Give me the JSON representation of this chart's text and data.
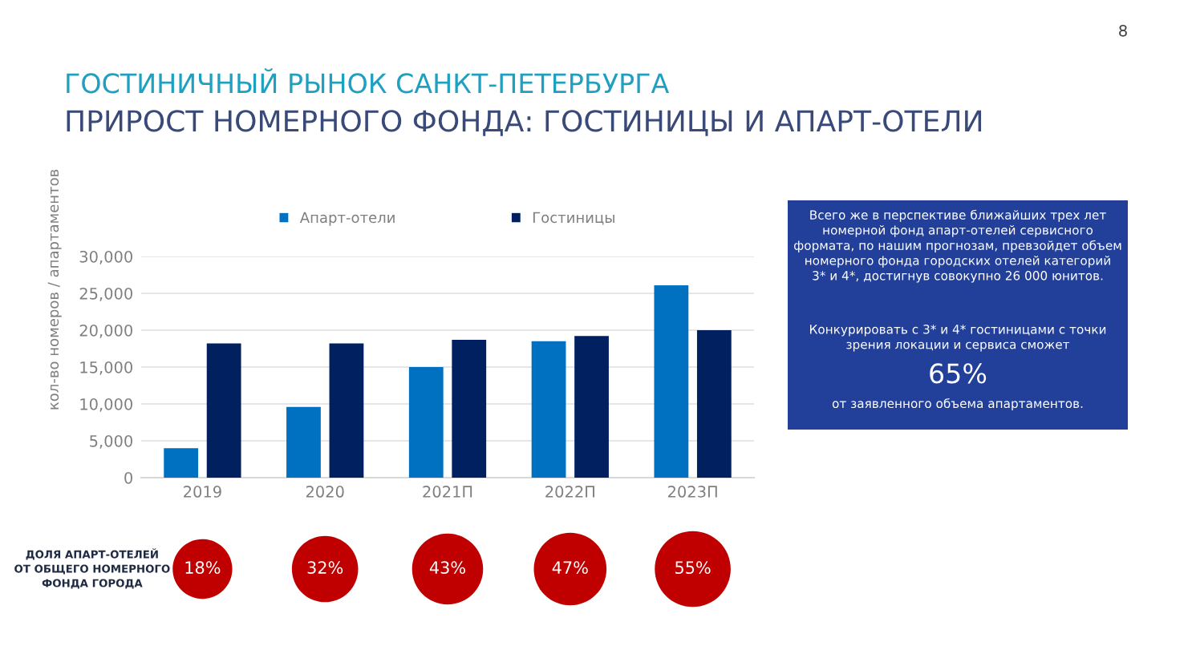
{
  "chart_data": [
    {
      "type": "bar",
      "title": "ГОСТИНИЧНЫЙ РЫНОК САНКТ-ПЕТЕРБУРГА",
      "subtitle": "ПРИРОСТ НОМЕРНОГО ФОНДА: ГОСТИНИЦЫ И АПАРТ-ОТЕЛИ",
      "ylabel": "кол-во номеров / апартаментов",
      "categories": [
        "2019",
        "2020",
        "2021П",
        "2022П",
        "2023П"
      ],
      "series": [
        {
          "name": "Апарт-отели",
          "color": "#0070c0",
          "values": [
            4000,
            9600,
            15000,
            18500,
            26100
          ]
        },
        {
          "name": "Гостиницы",
          "color": "#002060",
          "values": [
            18200,
            18200,
            18700,
            19200,
            20000
          ]
        }
      ],
      "ylim": [
        0,
        30000
      ],
      "yticks": [
        0,
        {
          "value": 5000,
          "label": "5,000"
        },
        {
          "value": 10000,
          "label": "10,000"
        },
        {
          "value": 15000,
          "label": "15,000"
        },
        {
          "value": 20000,
          "label": "20,000"
        },
        {
          "value": 25000,
          "label": "25,000"
        },
        {
          "value": 30000,
          "label": "30,000"
        }
      ],
      "grid": "y",
      "legend": "top",
      "annotations": [
        "8"
      ]
    },
    {
      "type": "other",
      "title": "ДОЛЯ АПАРТ-ОТЕЛЕЙ\nОТ ОБЩЕГО НОМЕРНОГО\nФОНДА ГОРОДА",
      "categories": [
        null,
        null,
        null,
        null,
        null
      ],
      "values": [
        18,
        32,
        43,
        47,
        55
      ],
      "color": "#c00000",
      "value_labels": [
        "18%",
        "32%",
        "43%",
        "47%",
        "55%"
      ]
    },
    {
      "type": "other",
      "annotations": [
        "Всего же в перспективе ближайших трех лет\nномерной фонд апарт-отелей сервисного\nформата, по нашим прогнозам, превзойдет объем\nномерного фонда городских отелей категорий\n3* и 4*, достигнув совокупно 26 000 юнитов.",
        "Конкурировать с 3* и 4* гостиницами с точки\nзрения локации и сервиса сможет",
        "65%",
        "от заявленного объема апартаментов."
      ]
    }
  ]
}
